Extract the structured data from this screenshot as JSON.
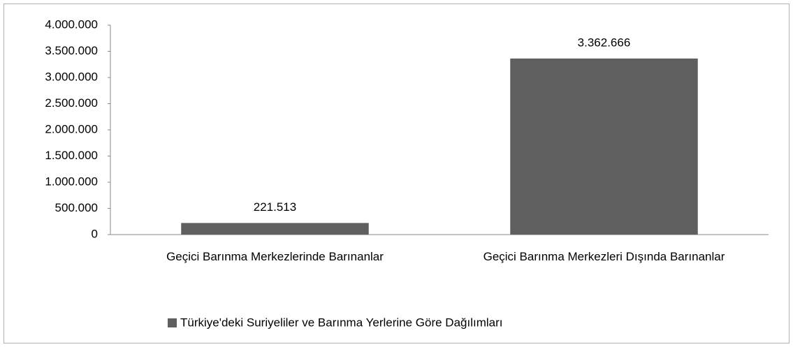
{
  "chart_data": {
    "type": "bar",
    "categories": [
      "Geçici Barınma Merkezlerinde Barınanlar",
      "Geçici Barınma Merkezleri Dışında Barınanlar"
    ],
    "series": [
      {
        "name": "Türkiye'deki Suriyeliler ve Barınma Yerlerine Göre Dağılımları",
        "color": "#5f5f5f",
        "values": [
          221513,
          3362666
        ],
        "value_labels": [
          "221.513",
          "3.362.666"
        ]
      }
    ],
    "ylim": [
      0,
      4000000
    ],
    "yticks": [
      0,
      {
        "value": 500000,
        "label": "500.000"
      },
      {
        "value": 1000000,
        "label": "1.000.000"
      },
      {
        "value": 1500000,
        "label": "1.500.000"
      },
      {
        "value": 2000000,
        "label": "2.000.000"
      },
      {
        "value": 2500000,
        "label": "2.500.000"
      },
      {
        "value": 3000000,
        "label": "3.000.000"
      },
      {
        "value": 3500000,
        "label": "3.500.000"
      },
      {
        "value": 4000000,
        "label": "4.000.000"
      }
    ],
    "legend": "bottom"
  }
}
